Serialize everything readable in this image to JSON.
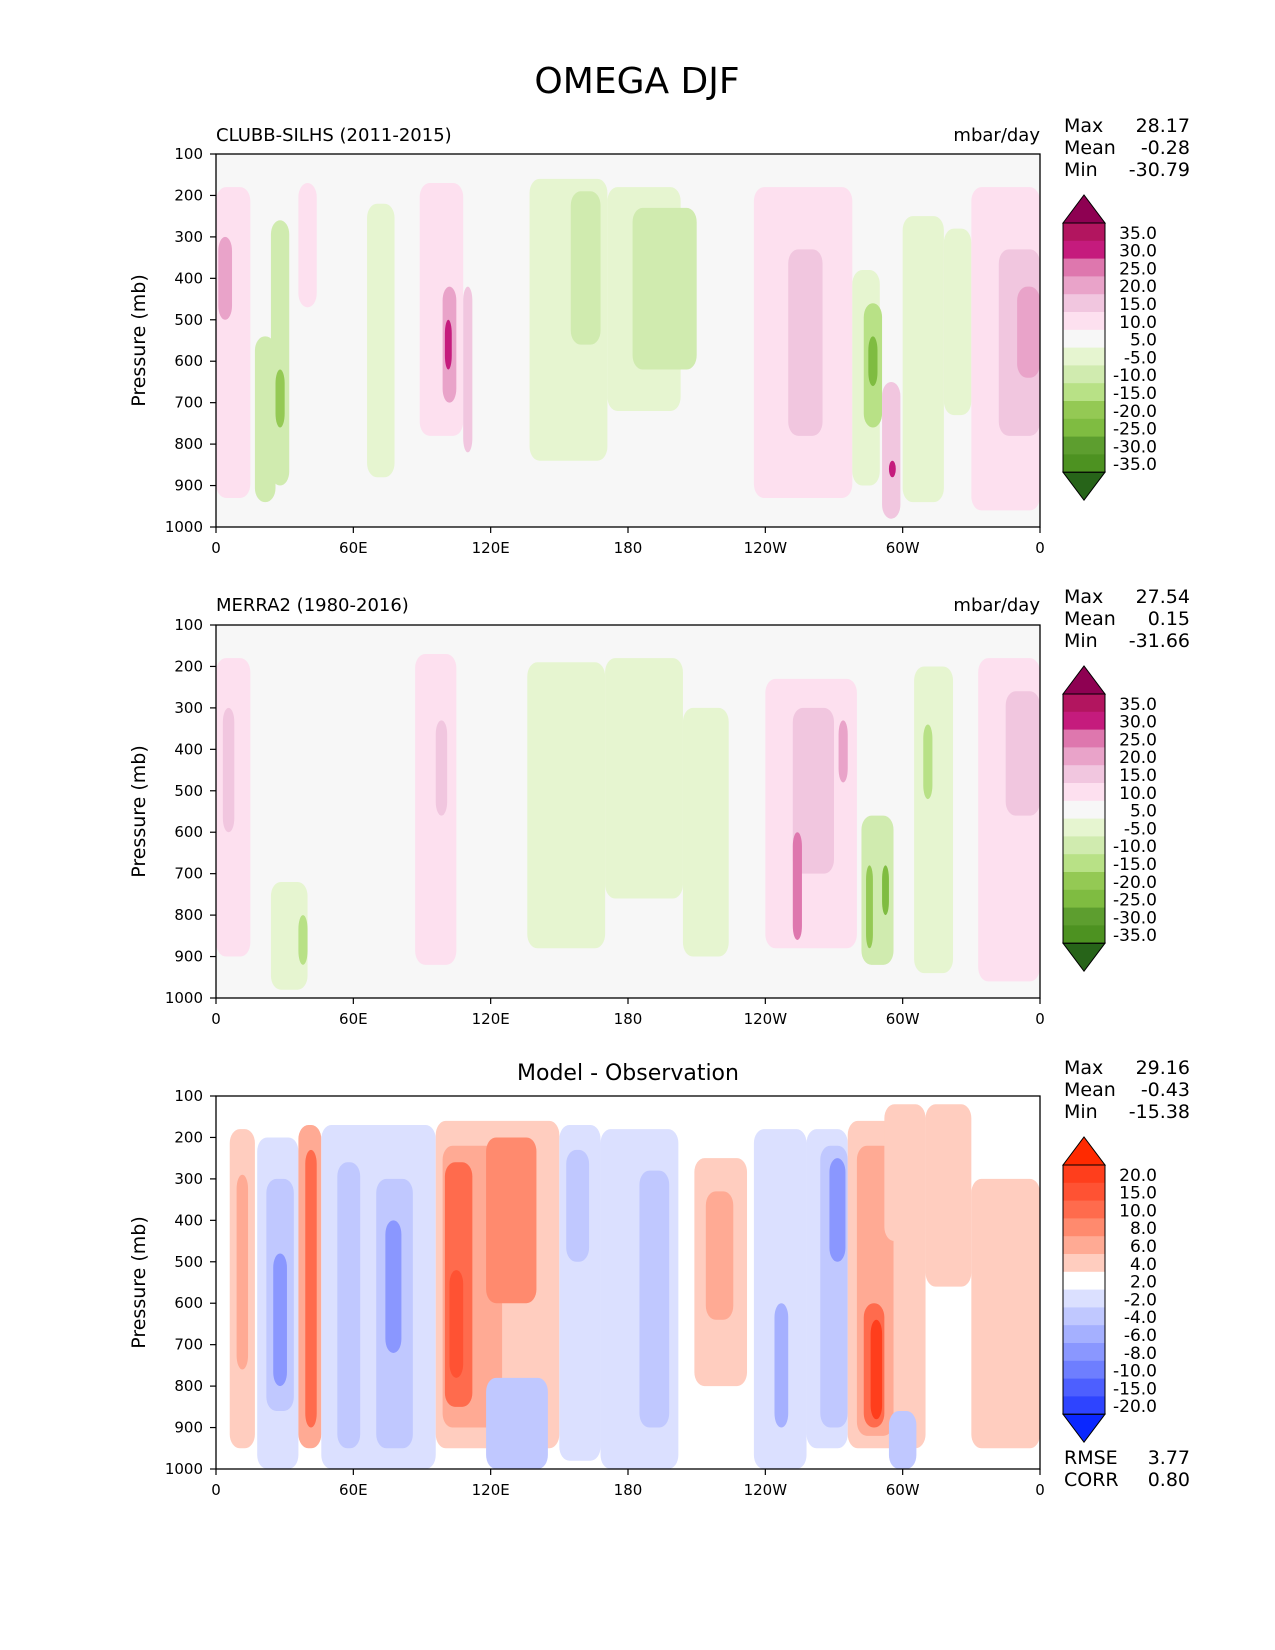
{
  "title": "OMEGA DJF",
  "chart_data": [
    {
      "type": "heatmap",
      "title_left": "CLUBB-SILHS (2011-2015)",
      "title_right": "mbar/day",
      "ylabel": "Pressure (mb)",
      "y_ticks": [
        "100",
        "200",
        "300",
        "400",
        "500",
        "600",
        "700",
        "800",
        "900",
        "1000"
      ],
      "ylim": [
        1000,
        100
      ],
      "x_ticks": [
        "0",
        "60E",
        "120E",
        "180",
        "120W",
        "60W",
        "0"
      ],
      "xlim": [
        0,
        360
      ],
      "stats": [
        {
          "label": "Max",
          "value": "28.17"
        },
        {
          "label": "Mean",
          "value": "-0.28"
        },
        {
          "label": "Min",
          "value": "-30.79"
        }
      ],
      "colorbar": {
        "labels": [
          "35.0",
          "30.0",
          "25.0",
          "20.0",
          "15.0",
          "10.0",
          "5.0",
          "-5.0",
          "-10.0",
          "-15.0",
          "-20.0",
          "-25.0",
          "-30.0",
          "-35.0"
        ],
        "colors": [
          "#8e0152",
          "#b2155f",
          "#c51b7d",
          "#de77ae",
          "#e9a3c9",
          "#f1c6df",
          "#fde0ef",
          "#f7f7f7",
          "#e6f5d0",
          "#d0ebaf",
          "#b8e186",
          "#94c954",
          "#7fbc41",
          "#5d9e2f",
          "#4d9221",
          "#276419"
        ]
      },
      "cells": [
        {
          "x": [
            0,
            15
          ],
          "y": [
            180,
            930
          ],
          "v": 10
        },
        {
          "x": [
            1,
            7
          ],
          "y": [
            300,
            500
          ],
          "v": 20
        },
        {
          "x": [
            17,
            26
          ],
          "y": [
            540,
            940
          ],
          "v": -10
        },
        {
          "x": [
            24,
            32
          ],
          "y": [
            260,
            900
          ],
          "v": -10
        },
        {
          "x": [
            26,
            30
          ],
          "y": [
            620,
            760
          ],
          "v": -20
        },
        {
          "x": [
            36,
            44
          ],
          "y": [
            170,
            470
          ],
          "v": 10
        },
        {
          "x": [
            66,
            78
          ],
          "y": [
            220,
            880
          ],
          "v": -5
        },
        {
          "x": [
            89,
            108
          ],
          "y": [
            170,
            780
          ],
          "v": 10
        },
        {
          "x": [
            99,
            105
          ],
          "y": [
            420,
            700
          ],
          "v": 20
        },
        {
          "x": [
            100,
            103
          ],
          "y": [
            500,
            620
          ],
          "v": 30
        },
        {
          "x": [
            108,
            112
          ],
          "y": [
            420,
            820
          ],
          "v": 15
        },
        {
          "x": [
            137,
            171
          ],
          "y": [
            160,
            840
          ],
          "v": -5
        },
        {
          "x": [
            155,
            168
          ],
          "y": [
            190,
            560
          ],
          "v": -10
        },
        {
          "x": [
            171,
            203
          ],
          "y": [
            180,
            720
          ],
          "v": -5
        },
        {
          "x": [
            182,
            210
          ],
          "y": [
            230,
            620
          ],
          "v": -10
        },
        {
          "x": [
            235,
            278
          ],
          "y": [
            180,
            930
          ],
          "v": 10
        },
        {
          "x": [
            250,
            265
          ],
          "y": [
            330,
            780
          ],
          "v": 15
        },
        {
          "x": [
            278,
            290
          ],
          "y": [
            380,
            900
          ],
          "v": -5
        },
        {
          "x": [
            283,
            291
          ],
          "y": [
            460,
            760
          ],
          "v": -15
        },
        {
          "x": [
            285,
            289
          ],
          "y": [
            540,
            660
          ],
          "v": -25
        },
        {
          "x": [
            291,
            299
          ],
          "y": [
            650,
            980
          ],
          "v": 15
        },
        {
          "x": [
            294,
            297
          ],
          "y": [
            840,
            880
          ],
          "v": 30
        },
        {
          "x": [
            300,
            318
          ],
          "y": [
            250,
            940
          ],
          "v": -5
        },
        {
          "x": [
            318,
            330
          ],
          "y": [
            280,
            730
          ],
          "v": -5
        },
        {
          "x": [
            330,
            360
          ],
          "y": [
            180,
            960
          ],
          "v": 10
        },
        {
          "x": [
            342,
            360
          ],
          "y": [
            330,
            780
          ],
          "v": 15
        },
        {
          "x": [
            350,
            360
          ],
          "y": [
            420,
            640
          ],
          "v": 20
        }
      ]
    },
    {
      "type": "heatmap",
      "title_left": "MERRA2 (1980-2016)",
      "title_right": "mbar/day",
      "ylabel": "Pressure (mb)",
      "y_ticks": [
        "100",
        "200",
        "300",
        "400",
        "500",
        "600",
        "700",
        "800",
        "900",
        "1000"
      ],
      "ylim": [
        1000,
        100
      ],
      "x_ticks": [
        "0",
        "60E",
        "120E",
        "180",
        "120W",
        "60W",
        "0"
      ],
      "xlim": [
        0,
        360
      ],
      "stats": [
        {
          "label": "Max",
          "value": "27.54"
        },
        {
          "label": "Mean",
          "value": "0.15"
        },
        {
          "label": "Min",
          "value": "-31.66"
        }
      ],
      "colorbar": {
        "labels": [
          "35.0",
          "30.0",
          "25.0",
          "20.0",
          "15.0",
          "10.0",
          "5.0",
          "-5.0",
          "-10.0",
          "-15.0",
          "-20.0",
          "-25.0",
          "-30.0",
          "-35.0"
        ],
        "colors": [
          "#8e0152",
          "#b2155f",
          "#c51b7d",
          "#de77ae",
          "#e9a3c9",
          "#f1c6df",
          "#fde0ef",
          "#f7f7f7",
          "#e6f5d0",
          "#d0ebaf",
          "#b8e186",
          "#94c954",
          "#7fbc41",
          "#5d9e2f",
          "#4d9221",
          "#276419"
        ]
      },
      "cells": [
        {
          "x": [
            0,
            15
          ],
          "y": [
            180,
            900
          ],
          "v": 10
        },
        {
          "x": [
            3,
            8
          ],
          "y": [
            300,
            600
          ],
          "v": 15
        },
        {
          "x": [
            24,
            40
          ],
          "y": [
            720,
            980
          ],
          "v": -5
        },
        {
          "x": [
            36,
            40
          ],
          "y": [
            800,
            920
          ],
          "v": -15
        },
        {
          "x": [
            87,
            105
          ],
          "y": [
            170,
            920
          ],
          "v": 10
        },
        {
          "x": [
            96,
            101
          ],
          "y": [
            330,
            560
          ],
          "v": 15
        },
        {
          "x": [
            136,
            170
          ],
          "y": [
            190,
            880
          ],
          "v": -5
        },
        {
          "x": [
            170,
            204
          ],
          "y": [
            180,
            760
          ],
          "v": -5
        },
        {
          "x": [
            204,
            224
          ],
          "y": [
            300,
            900
          ],
          "v": -5
        },
        {
          "x": [
            240,
            280
          ],
          "y": [
            230,
            880
          ],
          "v": 10
        },
        {
          "x": [
            252,
            270
          ],
          "y": [
            300,
            700
          ],
          "v": 15
        },
        {
          "x": [
            252,
            256
          ],
          "y": [
            600,
            860
          ],
          "v": 25
        },
        {
          "x": [
            272,
            276
          ],
          "y": [
            330,
            480
          ],
          "v": 20
        },
        {
          "x": [
            282,
            296
          ],
          "y": [
            560,
            920
          ],
          "v": -10
        },
        {
          "x": [
            284,
            287
          ],
          "y": [
            680,
            880
          ],
          "v": -20
        },
        {
          "x": [
            291,
            294
          ],
          "y": [
            680,
            800
          ],
          "v": -25
        },
        {
          "x": [
            305,
            322
          ],
          "y": [
            200,
            940
          ],
          "v": -5
        },
        {
          "x": [
            309,
            313
          ],
          "y": [
            340,
            520
          ],
          "v": -15
        },
        {
          "x": [
            333,
            360
          ],
          "y": [
            180,
            960
          ],
          "v": 10
        },
        {
          "x": [
            345,
            360
          ],
          "y": [
            260,
            560
          ],
          "v": 15
        }
      ]
    },
    {
      "type": "heatmap",
      "title_center": "Model - Observation",
      "ylabel": "Pressure (mb)",
      "y_ticks": [
        "100",
        "200",
        "300",
        "400",
        "500",
        "600",
        "700",
        "800",
        "900",
        "1000"
      ],
      "ylim": [
        1000,
        100
      ],
      "x_ticks": [
        "0",
        "60E",
        "120E",
        "180",
        "120W",
        "60W",
        "0"
      ],
      "xlim": [
        0,
        360
      ],
      "stats": [
        {
          "label": "Max",
          "value": "29.16"
        },
        {
          "label": "Mean",
          "value": "-0.43"
        },
        {
          "label": "Min",
          "value": "-15.38"
        }
      ],
      "bottom_stats": [
        {
          "label": "RMSE",
          "value": "3.77"
        },
        {
          "label": "CORR",
          "value": "0.80"
        }
      ],
      "colorbar": {
        "labels": [
          "20.0",
          "15.0",
          "10.0",
          "8.0",
          "6.0",
          "4.0",
          "2.0",
          "-2.0",
          "-4.0",
          "-6.0",
          "-8.0",
          "-10.0",
          "-15.0",
          "-20.0"
        ],
        "colors": [
          "#ff2a00",
          "#ff3e1c",
          "#ff5233",
          "#ff6b4d",
          "#ff8a6e",
          "#ffaa94",
          "#ffcdbf",
          "#ffffff",
          "#dbe0ff",
          "#c0c8ff",
          "#a5b0ff",
          "#8a97ff",
          "#6e7eff",
          "#4d5fff",
          "#2e44ff",
          "#0a27ff"
        ]
      },
      "cells": [
        {
          "x": [
            6,
            17
          ],
          "y": [
            180,
            950
          ],
          "v": 3
        },
        {
          "x": [
            9,
            14
          ],
          "y": [
            290,
            760
          ],
          "v": 5
        },
        {
          "x": [
            18,
            36
          ],
          "y": [
            200,
            1000
          ],
          "v": -3
        },
        {
          "x": [
            22,
            34
          ],
          "y": [
            300,
            860
          ],
          "v": -5
        },
        {
          "x": [
            25,
            31
          ],
          "y": [
            480,
            800
          ],
          "v": -9
        },
        {
          "x": [
            36,
            46
          ],
          "y": [
            170,
            950
          ],
          "v": 5
        },
        {
          "x": [
            39,
            44
          ],
          "y": [
            230,
            900
          ],
          "v": 9
        },
        {
          "x": [
            46,
            96
          ],
          "y": [
            170,
            1000
          ],
          "v": -3
        },
        {
          "x": [
            53,
            63
          ],
          "y": [
            260,
            950
          ],
          "v": -5
        },
        {
          "x": [
            70,
            86
          ],
          "y": [
            300,
            950
          ],
          "v": -5
        },
        {
          "x": [
            74,
            81
          ],
          "y": [
            400,
            720
          ],
          "v": -9
        },
        {
          "x": [
            96,
            150
          ],
          "y": [
            160,
            950
          ],
          "v": 3
        },
        {
          "x": [
            99,
            125
          ],
          "y": [
            220,
            900
          ],
          "v": 5
        },
        {
          "x": [
            100,
            112
          ],
          "y": [
            260,
            850
          ],
          "v": 9
        },
        {
          "x": [
            102,
            108
          ],
          "y": [
            520,
            780
          ],
          "v": 12
        },
        {
          "x": [
            118,
            140
          ],
          "y": [
            200,
            600
          ],
          "v": 7
        },
        {
          "x": [
            118,
            145
          ],
          "y": [
            780,
            1000
          ],
          "v": -5
        },
        {
          "x": [
            150,
            168
          ],
          "y": [
            170,
            980
          ],
          "v": -3
        },
        {
          "x": [
            153,
            163
          ],
          "y": [
            230,
            500
          ],
          "v": -5
        },
        {
          "x": [
            168,
            202
          ],
          "y": [
            180,
            1000
          ],
          "v": -3
        },
        {
          "x": [
            185,
            198
          ],
          "y": [
            280,
            900
          ],
          "v": -5
        },
        {
          "x": [
            209,
            232
          ],
          "y": [
            250,
            800
          ],
          "v": 3
        },
        {
          "x": [
            214,
            226
          ],
          "y": [
            330,
            640
          ],
          "v": 5
        },
        {
          "x": [
            235,
            258
          ],
          "y": [
            180,
            1000
          ],
          "v": -3
        },
        {
          "x": [
            244,
            250
          ],
          "y": [
            600,
            900
          ],
          "v": -7
        },
        {
          "x": [
            258,
            276
          ],
          "y": [
            180,
            950
          ],
          "v": -3
        },
        {
          "x": [
            264,
            276
          ],
          "y": [
            220,
            900
          ],
          "v": -5
        },
        {
          "x": [
            268,
            275
          ],
          "y": [
            250,
            500
          ],
          "v": -9
        },
        {
          "x": [
            276,
            310
          ],
          "y": [
            160,
            950
          ],
          "v": 3
        },
        {
          "x": [
            280,
            296
          ],
          "y": [
            220,
            920
          ],
          "v": 5
        },
        {
          "x": [
            283,
            292
          ],
          "y": [
            600,
            900
          ],
          "v": 9
        },
        {
          "x": [
            286,
            291
          ],
          "y": [
            640,
            880
          ],
          "v": 17
        },
        {
          "x": [
            292,
            310
          ],
          "y": [
            120,
            450
          ],
          "v": 4
        },
        {
          "x": [
            294,
            306
          ],
          "y": [
            860,
            1000
          ],
          "v": -5
        },
        {
          "x": [
            310,
            330
          ],
          "y": [
            120,
            560
          ],
          "v": 3
        },
        {
          "x": [
            330,
            360
          ],
          "y": [
            300,
            950
          ],
          "v": 3
        }
      ]
    }
  ]
}
